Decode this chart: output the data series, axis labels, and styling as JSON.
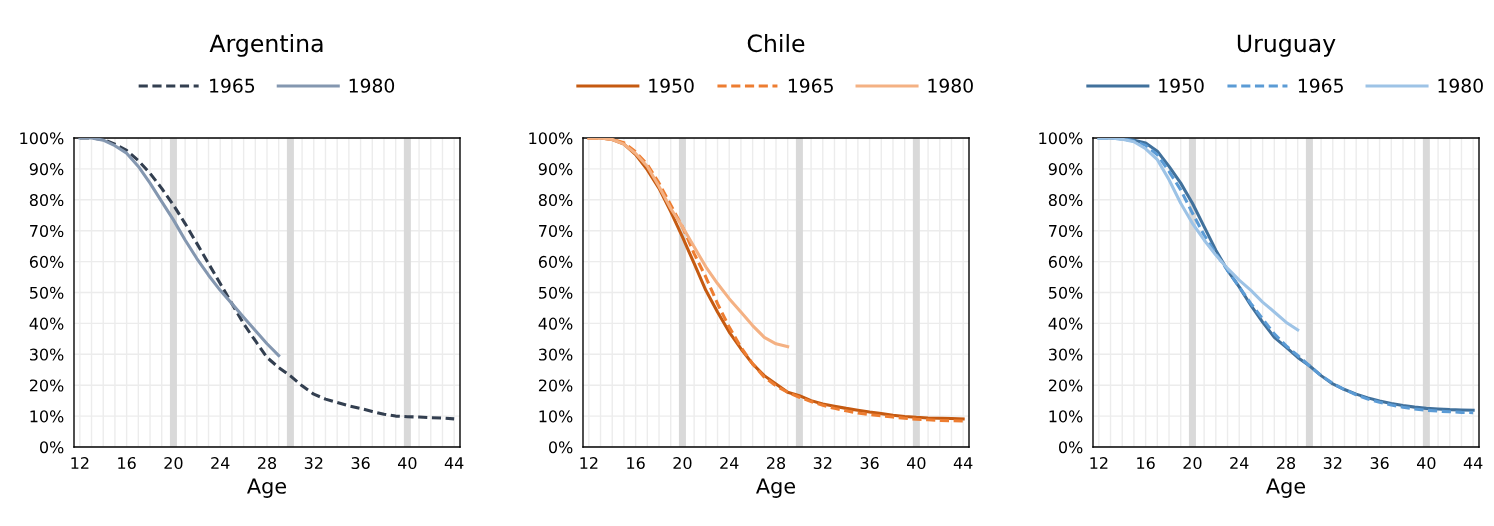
{
  "chart_data": [
    {
      "type": "line",
      "title": "Argentina",
      "xlabel": "Age",
      "legend": "top",
      "grid": true,
      "xlim": [
        11.5,
        44.5
      ],
      "ylim": [
        0,
        100
      ],
      "xticks": [
        12,
        {
          "value": 13,
          "label": null
        },
        {
          "value": 14,
          "label": null
        },
        {
          "value": 15,
          "label": null
        },
        16,
        {
          "value": 17,
          "label": null
        },
        {
          "value": 18,
          "label": null
        },
        {
          "value": 19,
          "label": null
        },
        20,
        {
          "value": 21,
          "label": null
        },
        {
          "value": 22,
          "label": null
        },
        {
          "value": 23,
          "label": null
        },
        24,
        {
          "value": 25,
          "label": null
        },
        {
          "value": 26,
          "label": null
        },
        {
          "value": 27,
          "label": null
        },
        28,
        {
          "value": 29,
          "label": null
        },
        {
          "value": 31,
          "label": null
        },
        32,
        {
          "value": 33,
          "label": null
        },
        {
          "value": 34,
          "label": null
        },
        {
          "value": 35,
          "label": null
        },
        36,
        {
          "value": 37,
          "label": null
        },
        {
          "value": 38,
          "label": null
        },
        {
          "value": 39,
          "label": null
        },
        40,
        {
          "value": 41,
          "label": null
        },
        {
          "value": 42,
          "label": null
        },
        {
          "value": 43,
          "label": null
        },
        44
      ],
      "yticks": [
        {
          "value": 0,
          "label": "0%"
        },
        {
          "value": 10,
          "label": "10%"
        },
        {
          "value": 20,
          "label": "20%"
        },
        {
          "value": 30,
          "label": "30%"
        },
        {
          "value": 40,
          "label": "40%"
        },
        {
          "value": 50,
          "label": "50%"
        },
        {
          "value": 60,
          "label": "60%"
        },
        {
          "value": 70,
          "label": "70%"
        },
        {
          "value": 80,
          "label": "80%"
        },
        {
          "value": 90,
          "label": "90%"
        },
        {
          "value": 100,
          "label": "100%"
        }
      ],
      "bands": [
        {
          "axis": "x",
          "from": 19.7,
          "to": 20.3,
          "color": "#d9d9d9"
        },
        {
          "axis": "x",
          "from": 29.7,
          "to": 30.3,
          "color": "#d9d9d9"
        },
        {
          "axis": "x",
          "from": 39.7,
          "to": 40.3,
          "color": "#d9d9d9"
        }
      ],
      "series": [
        {
          "name": "1965",
          "color": "#333f50",
          "line_style": "dashed",
          "x": [
            12,
            13,
            14,
            15,
            16,
            17,
            18,
            19,
            20,
            21,
            22,
            23,
            24,
            25,
            26,
            27,
            28,
            29,
            30,
            31,
            32,
            33,
            34,
            35,
            36,
            37,
            38,
            39,
            40,
            41,
            42,
            43,
            44
          ],
          "values": [
            100,
            100,
            99.5,
            98,
            96,
            92.7,
            88.6,
            83.7,
            78.3,
            72.3,
            65.9,
            59.4,
            52.9,
            46.4,
            39.9,
            34.4,
            29,
            25.7,
            23,
            19.8,
            17.1,
            15.5,
            14.4,
            13.3,
            12.5,
            11.5,
            10.6,
            10,
            9.8,
            9.7,
            9.5,
            9.4,
            9.1
          ]
        },
        {
          "name": "1980",
          "color": "#8497b0",
          "line_style": "solid",
          "x": [
            12,
            13,
            14,
            15,
            16,
            17,
            18,
            19,
            20,
            21,
            22,
            23,
            24,
            25,
            26,
            27,
            28,
            29
          ],
          "values": [
            100,
            100,
            99.3,
            97.5,
            95.1,
            90.8,
            85.4,
            79.4,
            73.5,
            67,
            61,
            55.6,
            50.7,
            46.4,
            42,
            37.7,
            33.4,
            29.6
          ]
        }
      ]
    },
    {
      "type": "line",
      "title": "Chile",
      "xlabel": "Age",
      "legend": "top",
      "grid": true,
      "xlim": [
        11.5,
        44.5
      ],
      "ylim": [
        0,
        100
      ],
      "xticks": [
        12,
        {
          "value": 13,
          "label": null
        },
        {
          "value": 14,
          "label": null
        },
        {
          "value": 15,
          "label": null
        },
        16,
        {
          "value": 17,
          "label": null
        },
        {
          "value": 18,
          "label": null
        },
        {
          "value": 19,
          "label": null
        },
        20,
        {
          "value": 21,
          "label": null
        },
        {
          "value": 22,
          "label": null
        },
        {
          "value": 23,
          "label": null
        },
        24,
        {
          "value": 25,
          "label": null
        },
        {
          "value": 26,
          "label": null
        },
        {
          "value": 27,
          "label": null
        },
        28,
        {
          "value": 29,
          "label": null
        },
        {
          "value": 31,
          "label": null
        },
        32,
        {
          "value": 33,
          "label": null
        },
        {
          "value": 34,
          "label": null
        },
        {
          "value": 35,
          "label": null
        },
        36,
        {
          "value": 37,
          "label": null
        },
        {
          "value": 38,
          "label": null
        },
        {
          "value": 39,
          "label": null
        },
        40,
        {
          "value": 41,
          "label": null
        },
        {
          "value": 42,
          "label": null
        },
        {
          "value": 43,
          "label": null
        },
        44
      ],
      "yticks": [
        {
          "value": 0,
          "label": "0%"
        },
        {
          "value": 10,
          "label": "10%"
        },
        {
          "value": 20,
          "label": "20%"
        },
        {
          "value": 30,
          "label": "30%"
        },
        {
          "value": 40,
          "label": "40%"
        },
        {
          "value": 50,
          "label": "50%"
        },
        {
          "value": 60,
          "label": "60%"
        },
        {
          "value": 70,
          "label": "70%"
        },
        {
          "value": 80,
          "label": "80%"
        },
        {
          "value": 90,
          "label": "90%"
        },
        {
          "value": 100,
          "label": "100%"
        }
      ],
      "bands": [
        {
          "axis": "x",
          "from": 19.7,
          "to": 20.3,
          "color": "#d9d9d9"
        },
        {
          "axis": "x",
          "from": 29.7,
          "to": 30.3,
          "color": "#d9d9d9"
        },
        {
          "axis": "x",
          "from": 39.7,
          "to": 40.3,
          "color": "#d9d9d9"
        }
      ],
      "series": [
        {
          "name": "1950",
          "color": "#c55a11",
          "line_style": "solid",
          "x": [
            12,
            13,
            14,
            15,
            16,
            17,
            18,
            19,
            20,
            21,
            22,
            23,
            24,
            25,
            26,
            27,
            28,
            29,
            30,
            31,
            32,
            33,
            34,
            35,
            36,
            37,
            38,
            39,
            40,
            41,
            42,
            43,
            44
          ],
          "values": [
            100,
            100,
            99.5,
            98,
            94.6,
            89.7,
            83.7,
            76.2,
            68,
            59.4,
            50.7,
            43.7,
            37.2,
            31.8,
            26.9,
            23.1,
            20.4,
            17.7,
            16.6,
            15,
            13.9,
            13.2,
            12.5,
            11.9,
            11.3,
            10.8,
            10.3,
            9.9,
            9.6,
            9.4,
            9.3,
            9.2,
            9.1
          ]
        },
        {
          "name": "1965",
          "color": "#ed7d31",
          "line_style": "dashed",
          "x": [
            12,
            13,
            14,
            15,
            16,
            17,
            18,
            19,
            20,
            21,
            22,
            23,
            24,
            25,
            26,
            27,
            28,
            29,
            30,
            31,
            32,
            33,
            34,
            35,
            36,
            37,
            38,
            39,
            40,
            41,
            42,
            43,
            44
          ],
          "values": [
            100,
            100,
            99.6,
            98.5,
            95.5,
            91.4,
            85.4,
            78.3,
            71.3,
            62.6,
            55,
            46.4,
            38.8,
            32.3,
            26.9,
            22.6,
            19.8,
            17.7,
            16.1,
            14.7,
            13.5,
            12.5,
            11.7,
            11,
            10.5,
            10.1,
            9.7,
            9.3,
            9,
            8.8,
            8.6,
            8.5,
            8.4
          ]
        },
        {
          "name": "1980",
          "color": "#f4b183",
          "line_style": "solid",
          "x": [
            12,
            13,
            14,
            15,
            16,
            17,
            18,
            19,
            20,
            21,
            22,
            23,
            24,
            25,
            26,
            27,
            28,
            29
          ],
          "values": [
            100,
            100,
            99.5,
            98,
            95,
            90.8,
            84.3,
            77.2,
            71.3,
            64.8,
            58.3,
            52.9,
            48,
            43.7,
            39.3,
            35.5,
            33.4,
            32.5
          ]
        }
      ]
    },
    {
      "type": "line",
      "title": "Uruguay",
      "xlabel": "Age",
      "legend": "top",
      "grid": true,
      "xlim": [
        11.5,
        44.5
      ],
      "ylim": [
        0,
        100
      ],
      "xticks": [
        12,
        {
          "value": 13,
          "label": null
        },
        {
          "value": 14,
          "label": null
        },
        {
          "value": 15,
          "label": null
        },
        16,
        {
          "value": 17,
          "label": null
        },
        {
          "value": 18,
          "label": null
        },
        {
          "value": 19,
          "label": null
        },
        20,
        {
          "value": 21,
          "label": null
        },
        {
          "value": 22,
          "label": null
        },
        {
          "value": 23,
          "label": null
        },
        24,
        {
          "value": 25,
          "label": null
        },
        {
          "value": 26,
          "label": null
        },
        {
          "value": 27,
          "label": null
        },
        28,
        {
          "value": 29,
          "label": null
        },
        {
          "value": 31,
          "label": null
        },
        32,
        {
          "value": 33,
          "label": null
        },
        {
          "value": 34,
          "label": null
        },
        {
          "value": 35,
          "label": null
        },
        36,
        {
          "value": 37,
          "label": null
        },
        {
          "value": 38,
          "label": null
        },
        {
          "value": 39,
          "label": null
        },
        40,
        {
          "value": 41,
          "label": null
        },
        {
          "value": 42,
          "label": null
        },
        {
          "value": 43,
          "label": null
        },
        44
      ],
      "yticks": [
        {
          "value": 0,
          "label": "0%"
        },
        {
          "value": 10,
          "label": "10%"
        },
        {
          "value": 20,
          "label": "20%"
        },
        {
          "value": 30,
          "label": "30%"
        },
        {
          "value": 40,
          "label": "40%"
        },
        {
          "value": 50,
          "label": "50%"
        },
        {
          "value": 60,
          "label": "60%"
        },
        {
          "value": 70,
          "label": "70%"
        },
        {
          "value": 80,
          "label": "80%"
        },
        {
          "value": 90,
          "label": "90%"
        },
        {
          "value": 100,
          "label": "100%"
        }
      ],
      "bands": [
        {
          "axis": "x",
          "from": 19.7,
          "to": 20.3,
          "color": "#d9d9d9"
        },
        {
          "axis": "x",
          "from": 29.7,
          "to": 30.3,
          "color": "#d9d9d9"
        },
        {
          "axis": "x",
          "from": 39.7,
          "to": 40.3,
          "color": "#d9d9d9"
        }
      ],
      "series": [
        {
          "name": "1950",
          "color": "#41719c",
          "line_style": "solid",
          "x": [
            12,
            13,
            14,
            15,
            16,
            17,
            18,
            19,
            20,
            21,
            22,
            23,
            24,
            25,
            26,
            27,
            28,
            29,
            30,
            31,
            32,
            33,
            34,
            35,
            36,
            37,
            38,
            39,
            40,
            41,
            42,
            43,
            44
          ],
          "values": [
            100,
            100,
            99.8,
            99.3,
            98.4,
            95.7,
            90.8,
            85.4,
            78.9,
            71.3,
            63.7,
            57.2,
            51.8,
            45.8,
            40.4,
            35.5,
            32.3,
            29,
            26.3,
            23.1,
            20.4,
            18.6,
            17.1,
            15.9,
            14.9,
            14.1,
            13.4,
            12.9,
            12.5,
            12.3,
            12.1,
            12,
            11.9
          ]
        },
        {
          "name": "1965",
          "color": "#5b9bd5",
          "line_style": "dashed",
          "x": [
            12,
            13,
            14,
            15,
            16,
            17,
            18,
            19,
            20,
            21,
            22,
            23,
            24,
            25,
            26,
            27,
            28,
            29,
            30,
            31,
            32,
            33,
            34,
            35,
            36,
            37,
            38,
            39,
            40,
            41,
            42,
            43,
            44
          ],
          "values": [
            100,
            100,
            99.7,
            99,
            97.6,
            94.6,
            89.2,
            83.2,
            75.7,
            68.6,
            62.6,
            57.2,
            51.8,
            46.4,
            41.5,
            36.6,
            32.8,
            29.6,
            26.3,
            23.1,
            20.6,
            18.6,
            16.9,
            15.5,
            14.5,
            13.6,
            12.9,
            12.3,
            11.9,
            11.6,
            11.4,
            11.2,
            11.1
          ]
        },
        {
          "name": "1980",
          "color": "#9dc3e6",
          "line_style": "solid",
          "x": [
            12,
            13,
            14,
            15,
            16,
            17,
            18,
            19,
            20,
            21,
            22,
            23,
            24,
            25,
            26,
            27,
            28,
            29
          ],
          "values": [
            100,
            100,
            99.6,
            98.8,
            96.5,
            93,
            86.5,
            78.9,
            72.4,
            67,
            62.1,
            57.8,
            54,
            50.7,
            46.9,
            43.7,
            40.4,
            37.9
          ]
        }
      ]
    }
  ]
}
